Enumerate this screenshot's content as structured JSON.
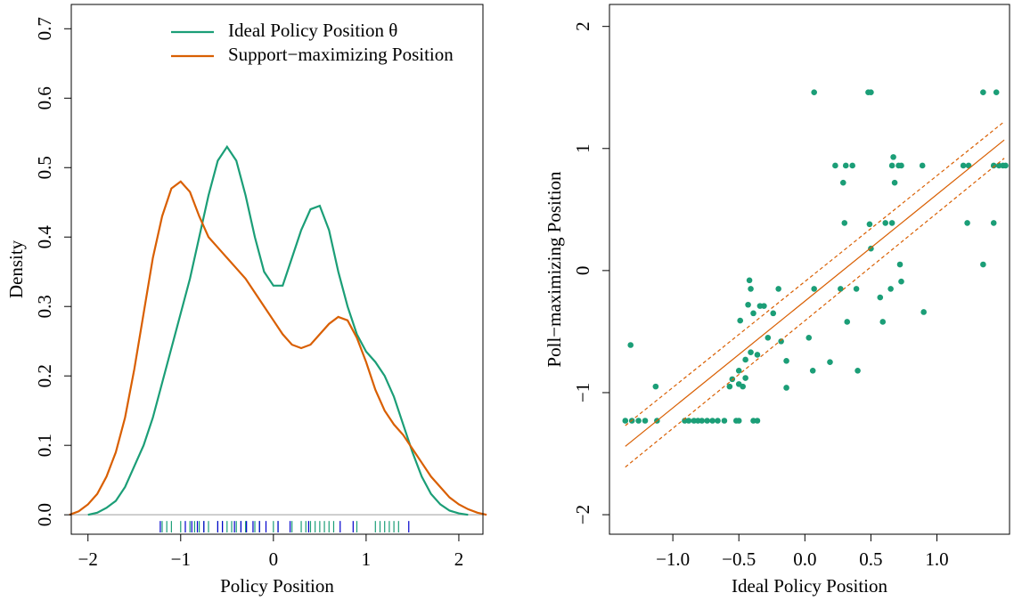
{
  "chart_data": [
    {
      "type": "density",
      "x_label": "Policy Position",
      "y_label": "Density",
      "xlim": [
        -2.18,
        2.26
      ],
      "ylim": [
        -0.028,
        0.735
      ],
      "xticks": [
        {
          "value": -2,
          "label": "−2"
        },
        {
          "value": -1,
          "label": "−1"
        },
        0,
        1,
        2
      ],
      "yticks": [
        {
          "value": 0,
          "label": "0.0"
        },
        {
          "value": 0.1,
          "label": "0.1"
        },
        {
          "value": 0.2,
          "label": "0.2"
        },
        {
          "value": 0.3,
          "label": "0.3"
        },
        {
          "value": 0.4,
          "label": "0.4"
        },
        {
          "value": 0.5,
          "label": "0.5"
        },
        {
          "value": 0.6,
          "label": "0.6"
        },
        {
          "value": 0.7,
          "label": "0.7"
        }
      ],
      "legend": "top-right",
      "zero_line": true,
      "x": [
        -2.2,
        -2.1,
        -2.0,
        -1.9,
        -1.8,
        -1.7,
        -1.6,
        -1.5,
        -1.4,
        -1.3,
        -1.2,
        -1.1,
        -1.0,
        -0.9,
        -0.8,
        -0.7,
        -0.6,
        -0.5,
        -0.4,
        -0.3,
        -0.2,
        -0.1,
        0,
        0.1,
        0.2,
        0.3,
        0.4,
        0.5,
        0.6,
        0.7,
        0.8,
        0.9,
        1.0,
        1.1,
        1.2,
        1.3,
        1.4,
        1.5,
        1.6,
        1.7,
        1.8,
        1.9,
        2.0,
        2.1,
        2.2,
        2.3
      ],
      "series": [
        {
          "name": "Ideal Policy Position θ",
          "color": "#1b9e77",
          "values": [
            null,
            null,
            0,
            0.003,
            0.01,
            0.02,
            0.04,
            0.07,
            0.1,
            0.14,
            0.19,
            0.24,
            0.29,
            0.34,
            0.4,
            0.46,
            0.51,
            0.53,
            0.51,
            0.46,
            0.4,
            0.35,
            0.33,
            0.33,
            0.37,
            0.41,
            0.44,
            0.445,
            0.41,
            0.35,
            0.3,
            0.26,
            0.235,
            0.22,
            0.2,
            0.17,
            0.13,
            0.09,
            0.055,
            0.03,
            0.015,
            0.006,
            0.002,
            0,
            null,
            null
          ]
        },
        {
          "name": "Support−maximizing Position",
          "color": "#d95f02",
          "values": [
            0,
            0.005,
            0.015,
            0.03,
            0.055,
            0.09,
            0.14,
            0.21,
            0.29,
            0.37,
            0.43,
            0.47,
            0.48,
            0.465,
            0.43,
            0.4,
            0.385,
            0.37,
            0.355,
            0.34,
            0.32,
            0.3,
            0.28,
            0.26,
            0.245,
            0.24,
            0.245,
            0.26,
            0.275,
            0.285,
            0.28,
            0.255,
            0.22,
            0.18,
            0.15,
            0.13,
            0.115,
            0.095,
            0.075,
            0.055,
            0.04,
            0.025,
            0.015,
            0.008,
            0.003,
            0
          ]
        }
      ],
      "rug": [
        {
          "color": "#1b9e77",
          "values": [
            -1.2,
            -1.15,
            -1.1,
            -1.0,
            -0.9,
            -0.85,
            -0.8,
            -0.75,
            -0.7,
            -0.6,
            -0.55,
            -0.5,
            -0.45,
            -0.4,
            -0.35,
            -0.3,
            -0.2,
            -0.15,
            0.0,
            0.05,
            0.2,
            0.3,
            0.35,
            0.4,
            0.45,
            0.5,
            0.55,
            0.6,
            0.65,
            0.9,
            1.1,
            1.15,
            1.2,
            1.25,
            1.3,
            1.35
          ]
        },
        {
          "color": "#0000cd",
          "values": [
            -1.22,
            -0.95,
            -0.88,
            -0.82,
            -0.75,
            -0.6,
            -0.55,
            -0.42,
            -0.35,
            -0.29,
            -0.22,
            -0.15,
            -0.08,
            0.05,
            0.18,
            0.38,
            0.72,
            0.86,
            1.46
          ]
        }
      ]
    },
    {
      "type": "scatter",
      "x_label": "Ideal Policy Position",
      "y_label": "Poll−maximizing Position",
      "xlim": [
        -1.48,
        1.55
      ],
      "ylim": [
        -2.16,
        2.18
      ],
      "xticks": [
        {
          "value": -1,
          "label": "−1.0"
        },
        {
          "value": -0.5,
          "label": "−0.5"
        },
        {
          "value": 0,
          "label": "0.0"
        },
        {
          "value": 0.5,
          "label": "0.5"
        },
        {
          "value": 1,
          "label": "1.0"
        }
      ],
      "yticks": [
        {
          "value": -2,
          "label": "−2"
        },
        {
          "value": -1,
          "label": "−1"
        },
        0,
        1,
        2
      ],
      "series": [
        {
          "kind": "points",
          "color": "#1b9e77",
          "x": [
            -1.32,
            -1.36,
            -1.31,
            -1.26,
            -1.21,
            -1.12,
            -1.13,
            -0.91,
            -0.88,
            -0.84,
            -0.81,
            -0.78,
            -0.74,
            -0.7,
            -0.66,
            -0.61,
            -0.52,
            -0.5,
            -0.39,
            -0.36,
            -0.57,
            -0.55,
            -0.5,
            -0.47,
            -0.45,
            -0.5,
            -0.36,
            -0.45,
            -0.41,
            -0.49,
            -0.43,
            -0.41,
            -0.42,
            -0.39,
            -0.34,
            -0.31,
            -0.28,
            -0.24,
            -0.2,
            -0.14,
            -0.14,
            -0.18,
            0.03,
            0.06,
            0.07,
            0.07,
            0.19,
            0.23,
            0.27,
            0.29,
            0.31,
            0.32,
            0.3,
            0.36,
            0.48,
            0.5,
            0.5,
            0.49,
            0.4,
            0.39,
            0.59,
            0.57,
            0.61,
            0.65,
            0.66,
            0.66,
            0.68,
            0.67,
            0.71,
            0.73,
            0.72,
            0.73,
            0.89,
            0.9,
            1.2,
            1.24,
            1.23,
            1.35,
            1.35,
            1.43,
            1.43,
            1.45,
            1.47,
            1.5,
            1.52
          ],
          "y": [
            -0.61,
            -1.23,
            -1.23,
            -1.23,
            -1.23,
            -1.23,
            -0.95,
            -1.23,
            -1.23,
            -1.23,
            -1.23,
            -1.23,
            -1.23,
            -1.23,
            -1.23,
            -1.23,
            -1.23,
            -1.23,
            -1.23,
            -1.23,
            -0.95,
            -0.89,
            -0.93,
            -0.95,
            -0.88,
            -0.82,
            -0.69,
            -0.73,
            -0.67,
            -0.41,
            -0.28,
            -0.15,
            -0.08,
            -0.35,
            -0.29,
            -0.29,
            -0.55,
            -0.35,
            -0.15,
            -0.74,
            -0.96,
            -0.58,
            -0.55,
            -0.82,
            -0.15,
            1.46,
            -0.75,
            0.86,
            -0.15,
            0.72,
            0.86,
            -0.42,
            0.39,
            0.86,
            1.46,
            1.46,
            0.18,
            0.38,
            -0.82,
            -0.15,
            -0.42,
            -0.22,
            0.39,
            -0.15,
            0.39,
            0.86,
            0.72,
            0.93,
            0.86,
            0.86,
            0.05,
            -0.09,
            0.86,
            -0.34,
            0.86,
            0.86,
            0.39,
            0.05,
            1.46,
            0.39,
            0.86,
            1.46,
            0.86,
            0.86,
            0.86
          ]
        },
        {
          "kind": "line",
          "color": "#d95f02",
          "dash": false,
          "x": [
            -1.36,
            1.51
          ],
          "y": [
            -1.44,
            1.07
          ]
        },
        {
          "kind": "line",
          "color": "#d95f02",
          "dash": true,
          "x": [
            -1.36,
            1.51
          ],
          "y": [
            -1.27,
            1.22
          ]
        },
        {
          "kind": "line",
          "color": "#d95f02",
          "dash": true,
          "x": [
            -1.36,
            1.51
          ],
          "y": [
            -1.61,
            0.92
          ]
        }
      ]
    }
  ]
}
